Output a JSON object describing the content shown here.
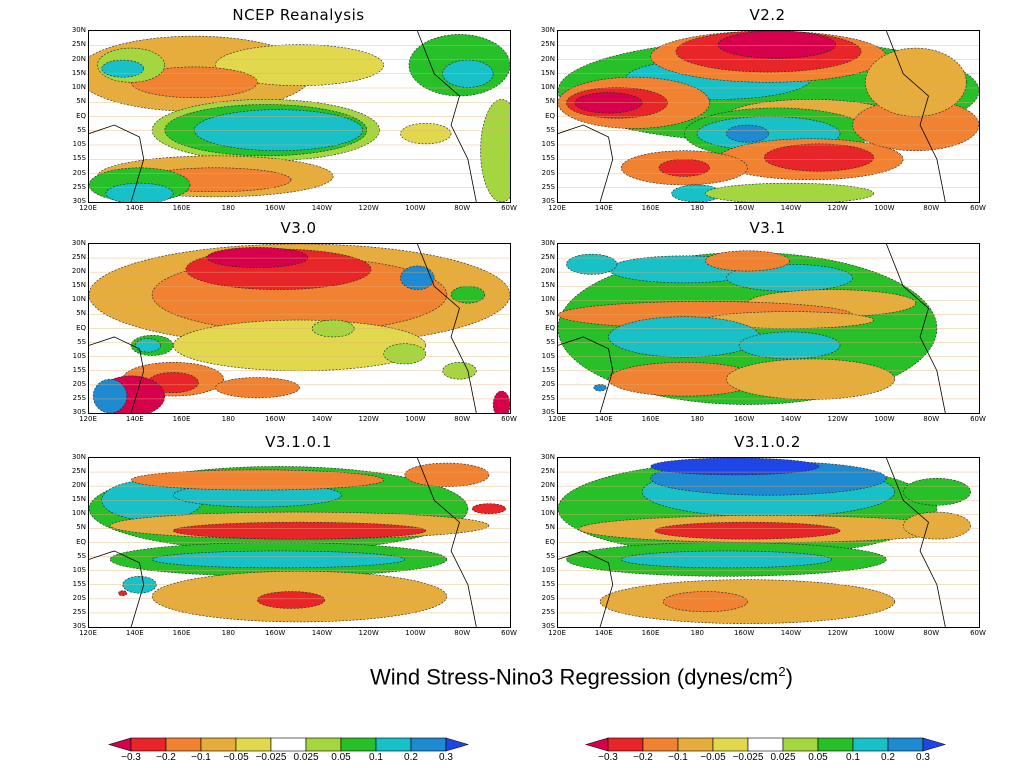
{
  "panels": [
    {
      "title": "NCEP Reanalysis"
    },
    {
      "title": "V2.2"
    },
    {
      "title": "V3.0"
    },
    {
      "title": "V3.1"
    },
    {
      "title": "V3.1.0.1"
    },
    {
      "title": "V3.1.0.2"
    }
  ],
  "lat_ticks": [
    "30N",
    "25N",
    "20N",
    "15N",
    "10N",
    "5N",
    "EQ",
    "5S",
    "10S",
    "15S",
    "20S",
    "25S",
    "30S"
  ],
  "lon_ticks": [
    "120E",
    "140E",
    "160E",
    "180",
    "160W",
    "140W",
    "120W",
    "100W",
    "80W",
    "60W"
  ],
  "main_title": "Wind Stress-Nino3 Regression (dynes/cm",
  "main_title_sup": "2",
  "main_title_end": ")",
  "colorbar": {
    "labels": [
      "−0.3",
      "−0.2",
      "−0.1",
      "−0.05",
      "−0.025",
      "0.025",
      "0.05",
      "0.1",
      "0.2",
      "0.3"
    ],
    "colors": [
      "#d7004d",
      "#e8262a",
      "#f08232",
      "#e6ac3c",
      "#e2d84e",
      "#ffffff",
      "#a4d640",
      "#28c028",
      "#18c0c8",
      "#1e8ad2",
      "#1e46e6"
    ]
  },
  "map_colors": {
    "red": "#e8262a",
    "darkred": "#d7004d",
    "orange": "#f08232",
    "lightorange": "#e6ac3c",
    "yellow": "#e2d84e",
    "lightgreen": "#a4d640",
    "green": "#28c028",
    "cyan": "#18c0c8",
    "blue": "#1e8ad2",
    "darkblue": "#1e46e6"
  }
}
